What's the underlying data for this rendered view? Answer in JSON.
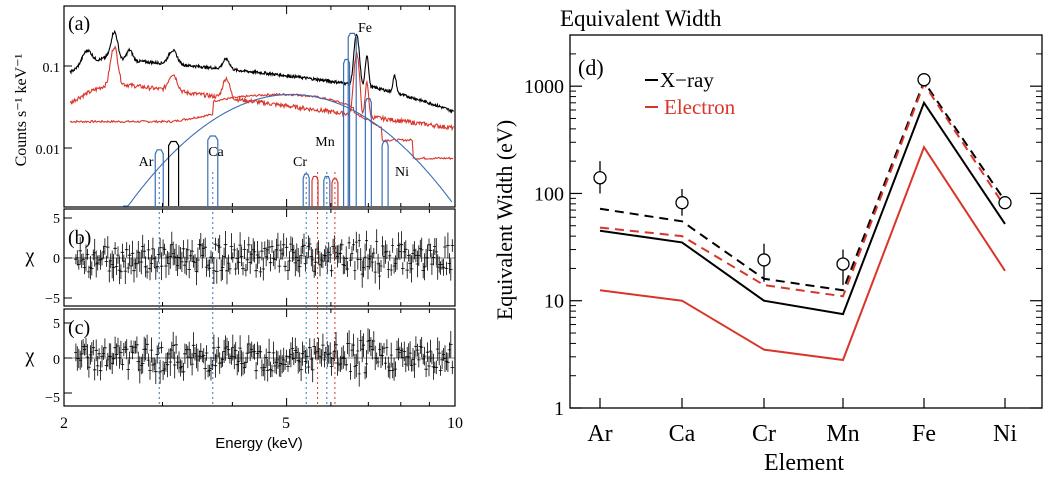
{
  "left_figure": {
    "x_axis": {
      "label": "Energy (keV)",
      "ticks": [
        "2",
        "5",
        "10"
      ],
      "range_kev": [
        2,
        10
      ],
      "scale": "log"
    },
    "panel_a": {
      "tag": "(a)",
      "ylabel": "Counts s⁻¹ keV⁻¹",
      "yticks": [
        "0.1",
        "0.01"
      ],
      "line_labels": {
        "ar": "Ar",
        "ca": "Ca",
        "cr": "Cr",
        "mn": "Mn",
        "fe": "Fe",
        "ni": "Ni"
      }
    },
    "panel_b": {
      "tag": "(b)",
      "ylabel": "χ",
      "yticks": [
        "5",
        "0",
        "−5"
      ]
    },
    "panel_c": {
      "tag": "(c)",
      "ylabel": "χ",
      "yticks": [
        "5",
        "0",
        "−5"
      ]
    },
    "colors": {
      "data": "#000000",
      "electron": "#d9352b",
      "xray": "#3a6fb5"
    }
  },
  "chart_data": {
    "type": "line",
    "title": "Equivalent Width",
    "panel_tag": "(d)",
    "xlabel": "Element",
    "ylabel": "Equivalent Width (eV)",
    "categories": [
      "Ar",
      "Ca",
      "Cr",
      "Mn",
      "Fe",
      "Ni"
    ],
    "yscale": "log",
    "ylim": [
      1,
      3000
    ],
    "yticks": [
      "1",
      "10",
      "100",
      "1000"
    ],
    "legend_position": "top-left",
    "series": [
      {
        "name": "X−ray",
        "style": "solid",
        "color": "#000000",
        "values": [
          45,
          35,
          10,
          7.5,
          700,
          52
        ]
      },
      {
        "name": "Electron",
        "style": "solid",
        "color": "#d9352b",
        "values": [
          12.5,
          10,
          3.5,
          2.8,
          270,
          19
        ]
      },
      {
        "style": "dashed",
        "color": "#000000",
        "values": [
          72,
          55,
          16,
          12.5,
          1100,
          85
        ]
      },
      {
        "style": "dashed",
        "color": "#d9352b",
        "values": [
          48,
          40,
          14,
          11,
          1050,
          75
        ]
      }
    ],
    "observed": {
      "marker": "open-circle",
      "values": [
        140,
        82,
        24,
        22,
        1150,
        82
      ],
      "err_low": [
        100,
        62,
        15,
        14,
        1000,
        72
      ],
      "err_high": [
        200,
        110,
        34,
        30,
        1300,
        94
      ]
    }
  }
}
